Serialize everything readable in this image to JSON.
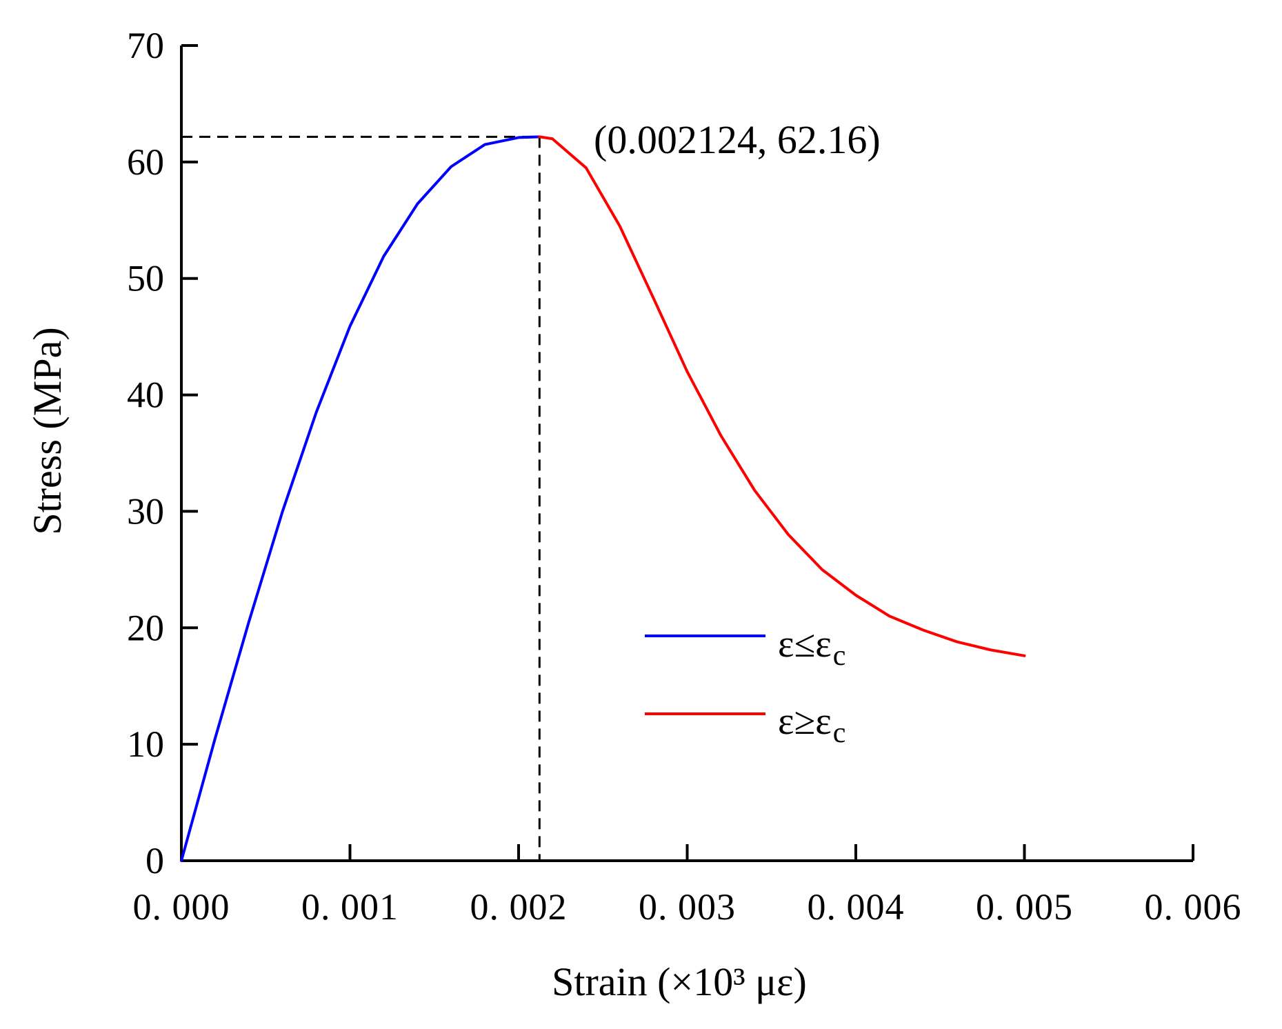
{
  "chart_data": {
    "type": "line",
    "title": "",
    "xlabel": "Strain (×10³ με)",
    "ylabel": "Stress (MPa)",
    "xlim": [
      0,
      0.006
    ],
    "ylim": [
      0,
      70
    ],
    "x_ticks": [
      0,
      0.001,
      0.002,
      0.003,
      0.004,
      0.005,
      0.006
    ],
    "x_tick_labels": [
      "0. 000",
      "0. 001",
      "0. 002",
      "0. 003",
      "0. 004",
      "0. 005",
      "0. 006"
    ],
    "y_ticks": [
      0,
      10,
      20,
      30,
      40,
      50,
      60,
      70
    ],
    "y_tick_labels": [
      "0",
      "10",
      "20",
      "30",
      "40",
      "50",
      "60",
      "70"
    ],
    "grid": false,
    "legend_position": "center-right",
    "peak": {
      "x": 0.002124,
      "y": 62.16,
      "label": "(0.002124, 62.16)"
    },
    "series": [
      {
        "name": "ε≤εc",
        "legend_symbol": "ε≤ε",
        "legend_subscript": "c",
        "color": "#0000ff",
        "x": [
          0,
          0.0002,
          0.0004,
          0.0006,
          0.0008,
          0.001,
          0.0012,
          0.0014,
          0.0016,
          0.0018,
          0.002,
          0.002124
        ],
        "y": [
          0,
          10.5,
          20.5,
          30.0,
          38.5,
          45.9,
          51.9,
          56.4,
          59.6,
          61.5,
          62.1,
          62.16
        ]
      },
      {
        "name": "ε≥εc",
        "legend_symbol": "ε≥ε",
        "legend_subscript": "c",
        "color": "#ff0000",
        "x": [
          0.002124,
          0.0022,
          0.0024,
          0.0026,
          0.0028,
          0.003,
          0.0032,
          0.0034,
          0.0036,
          0.0038,
          0.004,
          0.0042,
          0.0044,
          0.0046,
          0.0048,
          0.005
        ],
        "y": [
          62.16,
          62.0,
          59.5,
          54.5,
          48.3,
          42.0,
          36.5,
          31.8,
          28.0,
          25.0,
          22.8,
          21.0,
          19.8,
          18.8,
          18.1,
          17.6
        ]
      }
    ]
  }
}
